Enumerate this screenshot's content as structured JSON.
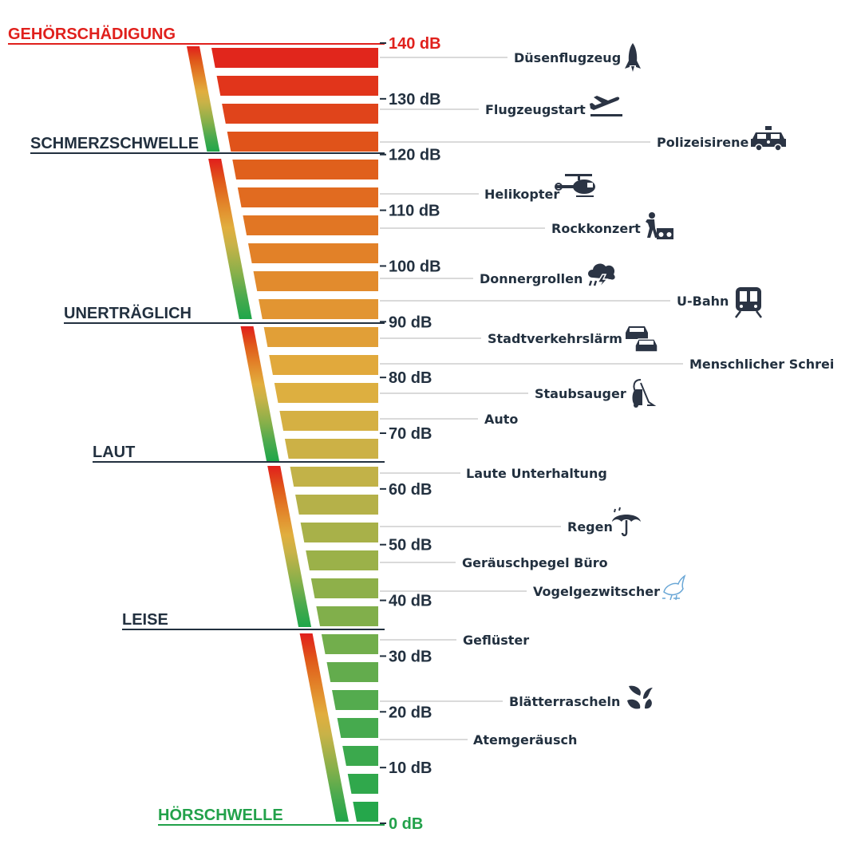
{
  "colors": {
    "text": "#22303f",
    "danger": "#e0201c",
    "safe": "#22a14a",
    "icon": "#2b3444",
    "leader_line": "#b5b5b5"
  },
  "zones": [
    {
      "label": "GEHÖRSCHÄDIGUNG",
      "db": 140,
      "color": "#e0201c"
    },
    {
      "label": "SCHMERZSCHWELLE",
      "db": 120,
      "color": "#22303f"
    },
    {
      "label": "UNERTRÄGLICH",
      "db": 90,
      "color": "#22303f"
    },
    {
      "label": "LAUT",
      "db": 65,
      "color": "#22303f"
    },
    {
      "label": "LEISE",
      "db": 35,
      "color": "#22303f"
    },
    {
      "label": "HÖRSCHWELLE",
      "db": 0,
      "color": "#22a14a"
    }
  ],
  "ticks": [
    {
      "label": "140 dB",
      "db": 140,
      "color": "#e0201c"
    },
    {
      "label": "130 dB",
      "db": 130,
      "color": "#22303f"
    },
    {
      "label": "120 dB",
      "db": 120,
      "color": "#22303f"
    },
    {
      "label": "110 dB",
      "db": 110,
      "color": "#22303f"
    },
    {
      "label": "100 dB",
      "db": 100,
      "color": "#22303f"
    },
    {
      "label": "90 dB",
      "db": 90,
      "color": "#22303f"
    },
    {
      "label": "80 dB",
      "db": 80,
      "color": "#22303f"
    },
    {
      "label": "70 dB",
      "db": 70,
      "color": "#22303f"
    },
    {
      "label": "60 dB",
      "db": 60,
      "color": "#22303f"
    },
    {
      "label": "50 dB",
      "db": 50,
      "color": "#22303f"
    },
    {
      "label": "40 dB",
      "db": 40,
      "color": "#22303f"
    },
    {
      "label": "30 dB",
      "db": 30,
      "color": "#22303f"
    },
    {
      "label": "20 dB",
      "db": 20,
      "color": "#22303f"
    },
    {
      "label": "10 dB",
      "db": 10,
      "color": "#22303f"
    },
    {
      "label": "0 dB",
      "db": 0,
      "color": "#22a14a"
    }
  ],
  "sources": [
    {
      "label": "Düsenflugzeug",
      "db": 140,
      "icon": "rocket-icon"
    },
    {
      "label": "Flugzeugstart",
      "db": 130,
      "icon": "plane-takeoff-icon"
    },
    {
      "label": "Polizeisirene",
      "db": 122,
      "icon": "police-car-icon"
    },
    {
      "label": "Helikopter",
      "db": 113,
      "icon": "helicopter-icon"
    },
    {
      "label": "Rockkonzert",
      "db": 106,
      "icon": "rock-concert-icon"
    },
    {
      "label": "Donnergrollen",
      "db": 98,
      "icon": "thunderstorm-icon"
    },
    {
      "label": "U-Bahn",
      "db": 94,
      "icon": "subway-train-icon"
    },
    {
      "label": "Stadtverkehrslärm",
      "db": 87,
      "icon": "traffic-cars-icon"
    },
    {
      "label": "Menschlicher Schrei",
      "db": 83,
      "icon": ""
    },
    {
      "label": "Staubsauger",
      "db": 76,
      "icon": "vacuum-cleaner-icon"
    },
    {
      "label": "Auto",
      "db": 72,
      "icon": ""
    },
    {
      "label": "Laute Unterhaltung",
      "db": 63,
      "icon": ""
    },
    {
      "label": "Regen",
      "db": 53,
      "icon": "umbrella-rain-icon"
    },
    {
      "label": "Geräuschpegel Büro",
      "db": 47,
      "icon": ""
    },
    {
      "label": "Vogelgezwitscher",
      "db": 42,
      "icon": "bird-icon"
    },
    {
      "label": "Geflüster",
      "db": 33,
      "icon": ""
    },
    {
      "label": "Blätterrascheln",
      "db": 22,
      "icon": "leaves-icon"
    },
    {
      "label": "Atemgeräusch",
      "db": 15,
      "icon": ""
    }
  ],
  "bar_gradient": [
    {
      "db": 140,
      "color": "#e11f1c"
    },
    {
      "db": 120,
      "color": "#e05a1a"
    },
    {
      "db": 100,
      "color": "#e2862a"
    },
    {
      "db": 80,
      "color": "#e1ae3e"
    },
    {
      "db": 65,
      "color": "#c8b248"
    },
    {
      "db": 40,
      "color": "#88b04a"
    },
    {
      "db": 20,
      "color": "#4caa4e"
    },
    {
      "db": 0,
      "color": "#1fa64a"
    }
  ]
}
